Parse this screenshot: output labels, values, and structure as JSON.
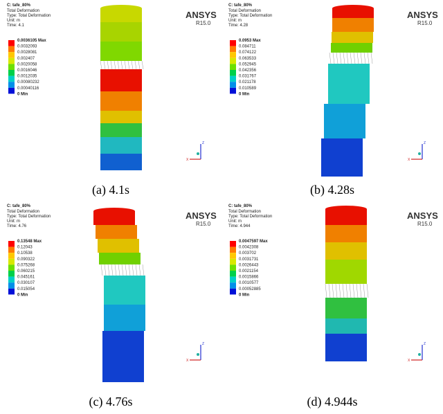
{
  "panels": [
    {
      "title": "C: tafe_80%",
      "lines": [
        "Total Deformation",
        "Type: Total Deformation",
        "Unit: m",
        "Time: 4.1"
      ],
      "legend": [
        "0.0036105 Max",
        "0.0032093",
        "0.0028081",
        "0.002407",
        "0.0020058",
        "0.0016046",
        "0.0012035",
        "0.00080232",
        "0.00040116",
        "0 Min"
      ],
      "brand": "ANSYS",
      "version": "R15.0",
      "triad": [
        "Z",
        "X"
      ],
      "caption": "(a) 4.1s"
    },
    {
      "title": "C: tafe_80%",
      "lines": [
        "Total Deformation",
        "Type: Total Deformation",
        "Unit: m",
        "Time: 4.28"
      ],
      "legend": [
        "0.0953 Max",
        "0.084711",
        "0.074122",
        "0.063533",
        "0.052945",
        "0.042356",
        "0.031767",
        "0.021178",
        "0.010589",
        "0 Min"
      ],
      "brand": "ANSYS",
      "version": "R15.0",
      "triad": [
        "Z",
        "X"
      ],
      "caption": "(b) 4.28s"
    },
    {
      "title": "C: tafe_80%",
      "lines": [
        "Total Deformation",
        "Type: Total Deformation",
        "Unit: m",
        "Time: 4.76"
      ],
      "legend": [
        "0.13548 Max",
        "0.12043",
        "0.10538",
        "0.090322",
        "0.075268",
        "0.060215",
        "0.045161",
        "0.030107",
        "0.015054",
        "0 Min"
      ],
      "brand": "ANSYS",
      "version": "R15.0",
      "triad": [
        "Z",
        "X"
      ],
      "caption": "(c) 4.76s"
    },
    {
      "title": "C: tafe_80%",
      "lines": [
        "Total Deformation",
        "Type: Total Deformation",
        "Unit: m",
        "Time: 4.944"
      ],
      "legend": [
        "0.0047597 Max",
        "0.0042308",
        "0.003702",
        "0.0031731",
        "0.0026443",
        "0.0021154",
        "0.0015866",
        "0.0010577",
        "0.00052885",
        "0 Min"
      ],
      "brand": "ANSYS",
      "version": "R15.0",
      "triad": [
        "Z",
        "X"
      ],
      "caption": "(d) 4.944s"
    }
  ]
}
